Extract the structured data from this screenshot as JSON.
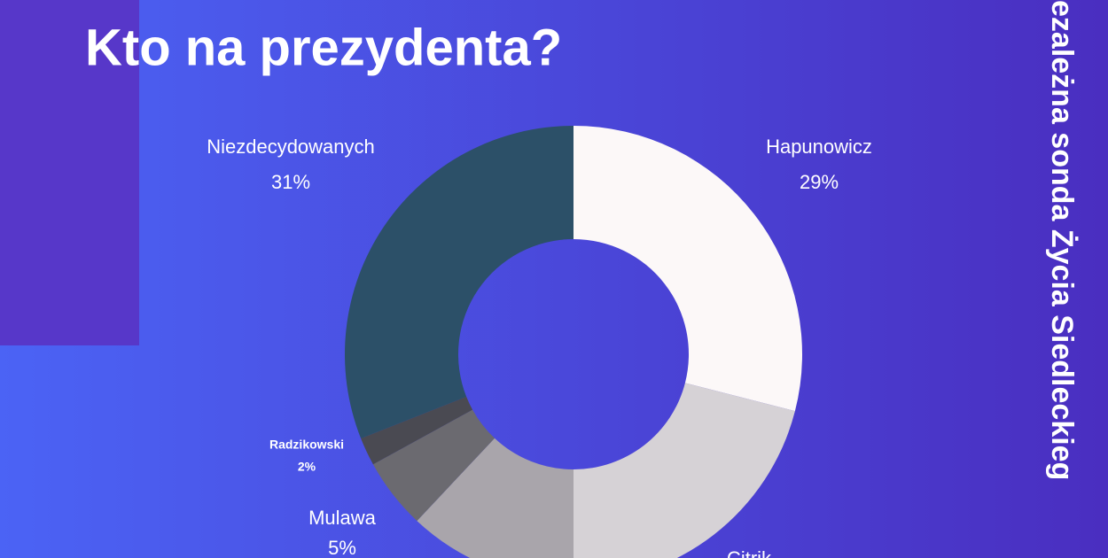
{
  "chart_data": {
    "type": "donut",
    "title": "Kto na prezydenta?",
    "side_text": "ezależna sonda Życia Siedleckieg",
    "categories": [
      "Hapunowicz",
      "Citrik",
      null,
      "Mulawa",
      "Radzikowski",
      "Niezdecydowanych"
    ],
    "values": [
      29,
      21,
      12,
      5,
      2,
      31
    ],
    "value_labels": [
      "29%",
      null,
      null,
      "5%",
      "2%",
      "31%"
    ],
    "colors": [
      "#fcf8f8",
      "#d6d2d6",
      "#a9a5ab",
      "#6b6a70",
      "#4a4a52",
      "#2c5068"
    ]
  }
}
